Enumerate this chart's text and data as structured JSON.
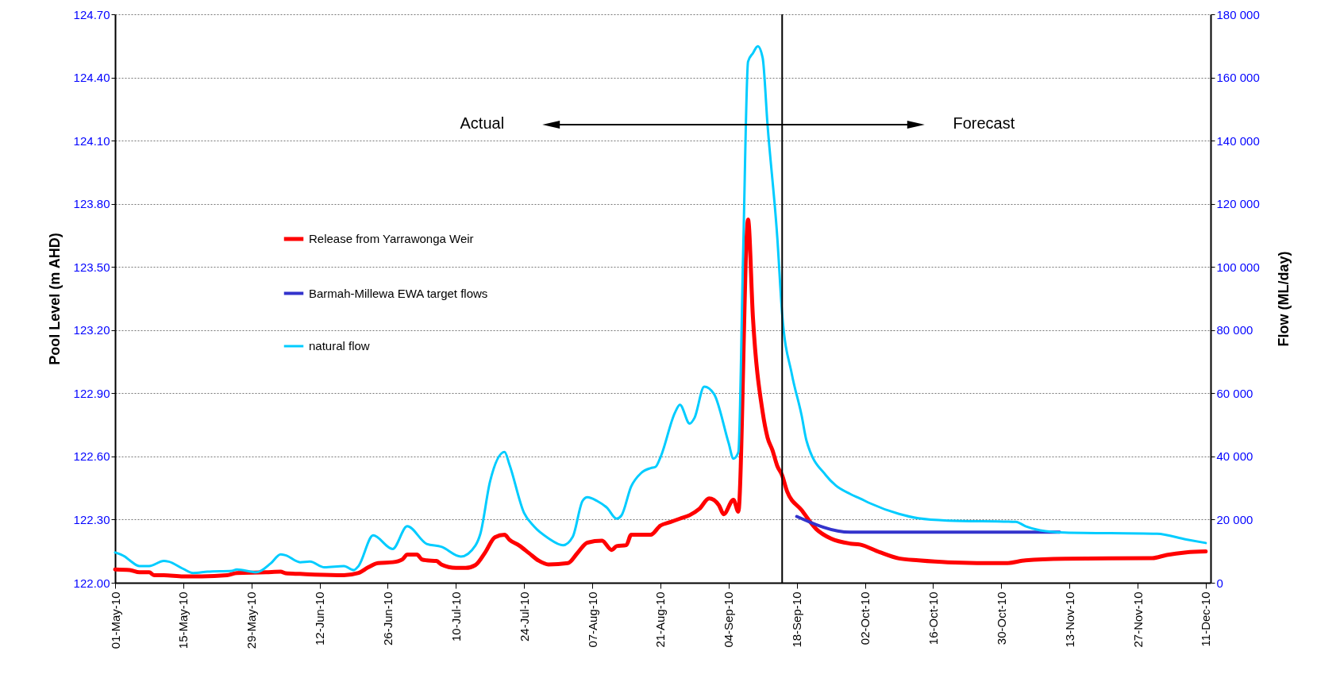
{
  "chart_data": {
    "type": "line",
    "ylabel": "Pool Level (m AHD)",
    "y2label": "Flow (ML/day)",
    "xlim": [
      "--05-01",
      "--12-12"
    ],
    "xticks": [
      {
        "value": "--05-01",
        "label": "01-May-10"
      },
      {
        "value": "--05-15",
        "label": "15-May-10"
      },
      {
        "value": "--05-29",
        "label": "29-May-10"
      },
      {
        "value": "--06-12",
        "label": "12-Jun-10"
      },
      {
        "value": "--06-26",
        "label": "26-Jun-10"
      },
      {
        "value": "--07-10",
        "label": "10-Jul-10"
      },
      {
        "value": "--07-24",
        "label": "24-Jul-10"
      },
      {
        "value": "--08-07",
        "label": "07-Aug-10"
      },
      {
        "value": "--08-21",
        "label": "21-Aug-10"
      },
      {
        "value": "--09-04",
        "label": "04-Sep-10"
      },
      {
        "value": "--09-18",
        "label": "18-Sep-10"
      },
      {
        "value": "--10-02",
        "label": "02-Oct-10"
      },
      {
        "value": "--10-16",
        "label": "16-Oct-10"
      },
      {
        "value": "--10-30",
        "label": "30-Oct-10"
      },
      {
        "value": "--11-13",
        "label": "13-Nov-10"
      },
      {
        "value": "--11-27",
        "label": "27-Nov-10"
      },
      {
        "value": "--12-11",
        "label": "11-Dec-10"
      }
    ],
    "ylim": [
      122,
      124.7
    ],
    "yticks": [
      {
        "value": 122,
        "label": "122.00"
      },
      {
        "value": 122.3,
        "label": "122.30"
      },
      {
        "value": 122.6,
        "label": "122.60"
      },
      {
        "value": 122.9,
        "label": "122.90"
      },
      {
        "value": 123.2,
        "label": "123.20"
      },
      {
        "value": 123.5,
        "label": "123.50"
      },
      {
        "value": 123.8,
        "label": "123.80"
      },
      {
        "value": 124.1,
        "label": "124.10"
      },
      {
        "value": 124.4,
        "label": "124.40"
      },
      {
        "value": 124.7,
        "label": "124.70"
      }
    ],
    "y2lim": [
      0,
      180000
    ],
    "y2ticks": [
      0,
      {
        "value": 20000,
        "label": "20 000"
      },
      {
        "value": 40000,
        "label": "40 000"
      },
      {
        "value": 60000,
        "label": "60 000"
      },
      {
        "value": 80000,
        "label": "80 000"
      },
      {
        "value": 100000,
        "label": "100 000"
      },
      {
        "value": 120000,
        "label": "120 000"
      },
      {
        "value": 140000,
        "label": "140 000"
      },
      {
        "value": 160000,
        "label": "160 000"
      },
      {
        "value": 180000,
        "label": "180 000"
      }
    ],
    "grid": "y",
    "legend": "left",
    "annotations": [
      "Actual",
      "Forecast"
    ],
    "ref_lines": [
      {
        "axis": "x",
        "value": "--09-15",
        "color": "#000000"
      }
    ],
    "series": [
      {
        "name": "Release from Yarrawonga Weir",
        "color": "#ff0000",
        "axis": "y2",
        "x": [
          "--05-01",
          "--05-04",
          "--05-06",
          "--05-08",
          "--05-09",
          "--05-11",
          "--05-15",
          "--05-18",
          "--05-24",
          "--05-26",
          "--06-01",
          "--06-04",
          "--06-05",
          "--06-08",
          "--06-11",
          "--06-17",
          "--06-20",
          "--06-22",
          "--06-24",
          "--06-27",
          "--06-29",
          "--06-30",
          "--07-02",
          "--07-03",
          "--07-04",
          "--07-06",
          "--07-07",
          "--07-10",
          "--07-12",
          "--07-14",
          "--07-16",
          "--07-18",
          "--07-20",
          "--07-21",
          "--07-23",
          "--07-25",
          "--07-27",
          "--07-29",
          "--08-02",
          "--08-04",
          "--08-06",
          "--08-09",
          "--08-11",
          "--08-12",
          "--08-14",
          "--08-15",
          "--08-19",
          "--08-21",
          "--08-23",
          "--08-25",
          "--08-27",
          "--08-29",
          "--08-31",
          "--09-02",
          "--09-03",
          "--09-05",
          "--09-06",
          "--09-08",
          "--09-09",
          "--09-11",
          "--09-12",
          "--09-13",
          "--09-14",
          "--09-15",
          "--09-16",
          "--09-19",
          "--09-22",
          "--09-25",
          "--09-29",
          "--10-01",
          "--10-05",
          "--10-09",
          "--10-13",
          "--10-19",
          "--10-31",
          "--11-04",
          "--11-12",
          "--11-30",
          "--12-03",
          "--12-07",
          "--12-11"
        ],
        "values": [
          4200,
          4000,
          3300,
          3300,
          2400,
          2400,
          2000,
          2000,
          2400,
          3100,
          3300,
          3500,
          3000,
          2800,
          2600,
          2400,
          3100,
          4900,
          6200,
          6500,
          7400,
          8900,
          8900,
          7400,
          7100,
          6900,
          5800,
          4700,
          4700,
          5600,
          9600,
          14400,
          15200,
          13600,
          11800,
          9400,
          7000,
          5800,
          6200,
          9500,
          12700,
          13300,
          10400,
          11600,
          11900,
          15200,
          15200,
          18100,
          19200,
          20300,
          21400,
          23400,
          26700,
          24600,
          21700,
          26300,
          22500,
          115000,
          84000,
          54000,
          46000,
          42000,
          37000,
          34000,
          29000,
          23000,
          17000,
          14000,
          12400,
          12100,
          9700,
          7700,
          7100,
          6500,
          6200,
          7100,
          7600,
          7800,
          8800,
          9600,
          9900
        ]
      },
      {
        "name": "Barmah-Millewa EWA target flows",
        "color": "#3333cc",
        "axis": "y2",
        "x": [
          "--09-18",
          "--09-29",
          "--11-11"
        ],
        "values": [
          21000,
          16000,
          16000
        ]
      },
      {
        "name": "natural flow",
        "color": "#00ccff",
        "axis": "y2",
        "x": [
          "--05-01",
          "--05-03",
          "--05-04",
          "--05-06",
          "--05-08",
          "--05-11",
          "--05-12",
          "--05-15",
          "--05-17",
          "--05-20",
          "--05-25",
          "--05-26",
          "--05-30",
          "--06-02",
          "--06-04",
          "--06-05",
          "--06-08",
          "--06-10",
          "--06-13",
          "--06-17",
          "--06-19",
          "--06-20",
          "--06-23",
          "--06-27",
          "--06-30",
          "--07-04",
          "--07-07",
          "--07-11",
          "--07-14",
          "--07-15",
          "--07-17",
          "--07-20",
          "--07-21",
          "--07-24",
          "--07-26",
          "--07-29",
          "--08-01",
          "--08-03",
          "--08-05",
          "--08-06",
          "--08-08",
          "--08-10",
          "--08-12",
          "--08-13",
          "--08-15",
          "--08-17",
          "--08-19",
          "--08-20",
          "--08-21",
          "--08-24",
          "--08-25",
          "--08-27",
          "--08-28",
          "--08-30",
          "--09-01",
          "--09-04",
          "--09-05",
          "--09-06",
          "--09-07",
          "--09-08",
          "--09-09",
          "--09-10",
          "--09-11",
          "--09-12",
          "--09-14",
          "--09-15",
          "--09-17",
          "--09-19",
          "--09-20",
          "--09-24",
          "--09-26",
          "--09-29",
          "--10-01",
          "--10-03",
          "--10-09",
          "--10-13",
          "--10-19",
          "--11-02",
          "--11-04",
          "--11-07",
          "--11-12",
          "--12-01",
          "--12-07",
          "--12-11"
        ],
        "values": [
          9600,
          8300,
          7100,
          5300,
          5300,
          6900,
          6700,
          4400,
          3100,
          3500,
          3800,
          4200,
          3300,
          6200,
          9000,
          8700,
          6500,
          6700,
          4900,
          5300,
          4000,
          5300,
          15000,
          10700,
          17900,
          12300,
          11400,
          8300,
          11800,
          15400,
          32000,
          41400,
          37400,
          22100,
          17900,
          14100,
          11900,
          14600,
          25900,
          27100,
          25900,
          23800,
          20300,
          21300,
          30500,
          34700,
          36300,
          36700,
          39700,
          53900,
          56400,
          50400,
          52200,
          62100,
          59800,
          44300,
          39300,
          41300,
          105000,
          165000,
          167700,
          169900,
          166200,
          145000,
          109400,
          85100,
          66000,
          53000,
          45000,
          34000,
          30800,
          28100,
          26700,
          25200,
          21800,
          20400,
          19700,
          19300,
          17900,
          16600,
          15900,
          15500,
          13700,
          12600
        ]
      }
    ]
  }
}
